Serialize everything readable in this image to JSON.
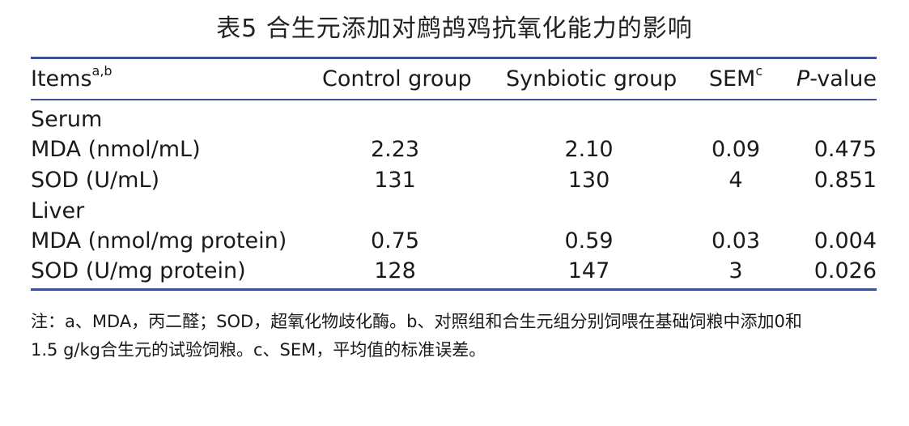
{
  "title": "表5 合生元添加对鹧鸪鸡抗氧化能力的影响",
  "header": {
    "items": "Items",
    "items_sup": "a,b",
    "control": "Control group",
    "synbiotic": "Synbiotic group",
    "sem": "SEM",
    "sem_sup": "c",
    "p_italic": "P",
    "p_rest": "-value"
  },
  "rows": [
    {
      "label": "Serum",
      "control": "",
      "synbiotic": "",
      "sem": "",
      "p": ""
    },
    {
      "label": "MDA (nmol/mL)",
      "control": "2.23",
      "synbiotic": "2.10",
      "sem": "0.09",
      "p": "0.475"
    },
    {
      "label": "SOD (U/mL)",
      "control": "131",
      "synbiotic": "130",
      "sem": "4",
      "p": "0.851"
    },
    {
      "label": "Liver",
      "control": "",
      "synbiotic": "",
      "sem": "",
      "p": ""
    },
    {
      "label": "MDA (nmol/mg protein)",
      "control": "0.75",
      "synbiotic": "0.59",
      "sem": "0.03",
      "p": "0.004"
    },
    {
      "label": "SOD (U/mg protein)",
      "control": "128",
      "synbiotic": "147",
      "sem": "3",
      "p": "0.026"
    }
  ],
  "note": {
    "line1": "注：a、MDA，丙二醛；SOD，超氧化物歧化酶。b、对照组和合生元组分别饲喂在基础饲粮中添加0和",
    "line2": "1.5 g/kg合生元的试验饲粮。c、SEM，平均值的标准误差。"
  },
  "colors": {
    "rule": "#3f4f93",
    "text": "#1a1a1a"
  }
}
